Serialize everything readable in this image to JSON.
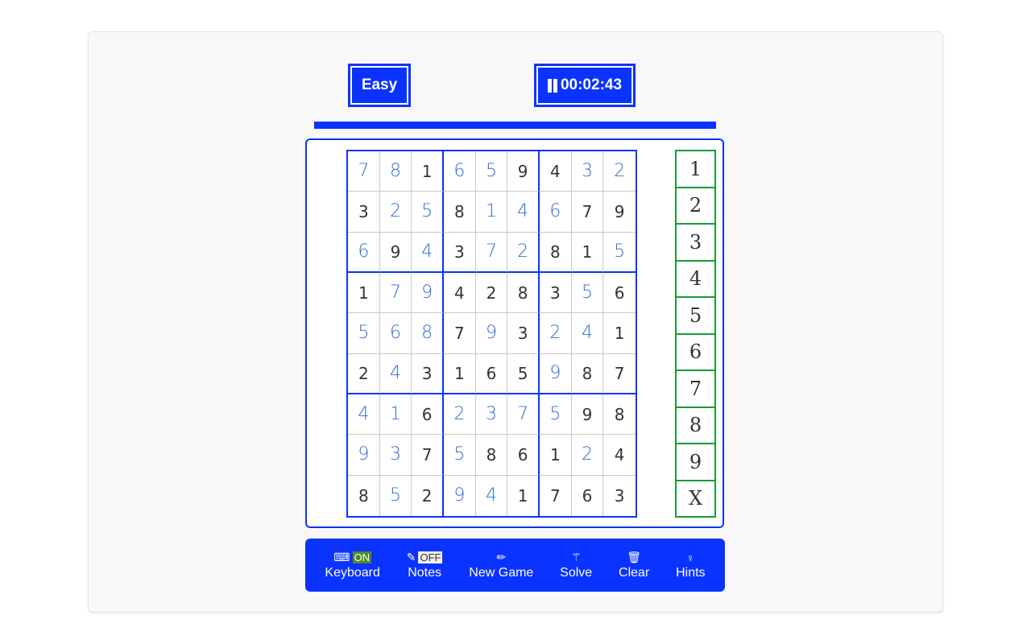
{
  "header": {
    "difficulty": "Easy",
    "timer": "00:02:43"
  },
  "colors": {
    "accent": "#0a33ff",
    "user_digit": "#2f6fd0",
    "given_digit": "#333333",
    "keypad_border": "#1a9a3a"
  },
  "board": {
    "values": [
      [
        7,
        8,
        1,
        6,
        5,
        9,
        4,
        3,
        2
      ],
      [
        3,
        2,
        5,
        8,
        1,
        4,
        6,
        7,
        9
      ],
      [
        6,
        9,
        4,
        3,
        7,
        2,
        8,
        1,
        5
      ],
      [
        1,
        7,
        9,
        4,
        2,
        8,
        3,
        5,
        6
      ],
      [
        5,
        6,
        8,
        7,
        9,
        3,
        2,
        4,
        1
      ],
      [
        2,
        4,
        3,
        1,
        6,
        5,
        9,
        8,
        7
      ],
      [
        4,
        1,
        6,
        2,
        3,
        7,
        5,
        9,
        8
      ],
      [
        9,
        3,
        7,
        5,
        8,
        6,
        1,
        2,
        4
      ],
      [
        8,
        5,
        2,
        9,
        4,
        1,
        7,
        6,
        3
      ]
    ],
    "given": [
      [
        0,
        0,
        1,
        0,
        0,
        1,
        1,
        0,
        0
      ],
      [
        1,
        0,
        0,
        1,
        0,
        0,
        0,
        1,
        1
      ],
      [
        0,
        1,
        0,
        1,
        0,
        0,
        1,
        1,
        0
      ],
      [
        1,
        0,
        0,
        1,
        1,
        1,
        1,
        0,
        1
      ],
      [
        0,
        0,
        0,
        1,
        0,
        1,
        0,
        0,
        1
      ],
      [
        1,
        0,
        1,
        1,
        1,
        1,
        0,
        1,
        1
      ],
      [
        0,
        0,
        1,
        0,
        0,
        0,
        0,
        1,
        1
      ],
      [
        0,
        0,
        1,
        0,
        1,
        1,
        1,
        0,
        1
      ],
      [
        1,
        0,
        1,
        0,
        0,
        1,
        1,
        1,
        1
      ]
    ]
  },
  "keypad": [
    "1",
    "2",
    "3",
    "4",
    "5",
    "6",
    "7",
    "8",
    "9",
    "X"
  ],
  "toolbar": [
    {
      "label": "Keyboard",
      "icon": "keyboard-icon",
      "glyph": "⌨",
      "badge": "ON"
    },
    {
      "label": "Notes",
      "icon": "edit-icon",
      "glyph": "✎",
      "badge": "OFF"
    },
    {
      "label": "New Game",
      "icon": "pencil-icon",
      "glyph": "✏"
    },
    {
      "label": "Solve",
      "icon": "magic-wand-icon",
      "glyph": "⚚"
    },
    {
      "label": "Clear",
      "icon": "trash-icon",
      "glyph": "🗑"
    },
    {
      "label": "Hints",
      "icon": "lightbulb-icon",
      "glyph": "♀"
    }
  ]
}
